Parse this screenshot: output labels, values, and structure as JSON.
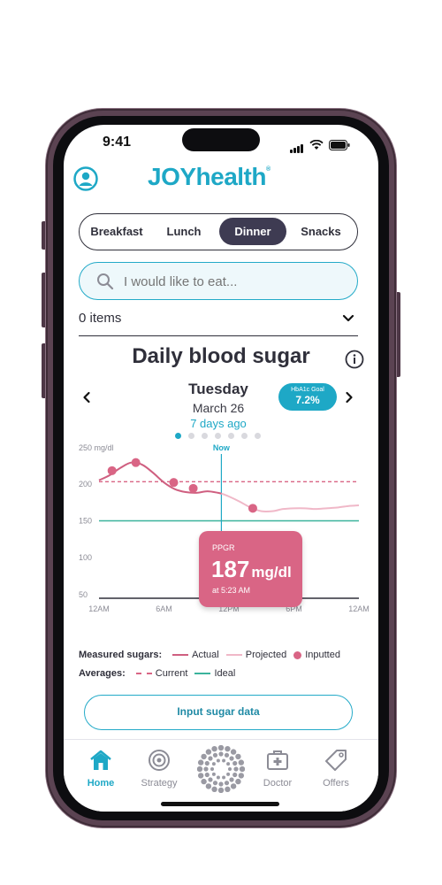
{
  "status_bar": {
    "time": "9:41"
  },
  "header": {
    "logo_text": "JOYhealth",
    "logo_mark": "®",
    "profile_icon": "user-circle-icon"
  },
  "meal_tabs": {
    "items": [
      "Breakfast",
      "Lunch",
      "Dinner",
      "Snacks"
    ],
    "selected": "Dinner"
  },
  "search": {
    "placeholder": "I would like to eat..."
  },
  "items": {
    "count_label": "0 items"
  },
  "chart_section": {
    "title": "Daily blood sugar",
    "day": "Tuesday",
    "date": "March 26",
    "relative": "7 days ago",
    "hba1c_label": "HbA1c Goal",
    "hba1c_value": "7.2%",
    "page_dots": 7,
    "active_dot": 0
  },
  "chart_data": {
    "type": "line",
    "ylabel": "",
    "y_unit_label": "250 mg/dl",
    "y_ticks": [
      "200",
      "150",
      "100",
      "50"
    ],
    "ylim": [
      45,
      255
    ],
    "x_ticks": [
      "12AM",
      "6AM",
      "12PM",
      "6PM",
      "12AM"
    ],
    "xlim": [
      0,
      24
    ],
    "now_label": "Now",
    "now_x": 11.3,
    "series": [
      {
        "name": "Actual",
        "x": [
          0,
          1,
          2,
          3,
          4,
          5,
          6,
          7,
          8,
          9,
          10,
          11,
          11.3
        ],
        "y": [
          205,
          212,
          222,
          229,
          226,
          215,
          202,
          193,
          189,
          188,
          190,
          188,
          187
        ]
      },
      {
        "name": "Projected",
        "x": [
          11.3,
          12,
          13,
          14,
          15,
          16,
          17,
          18,
          19,
          20,
          21,
          22,
          23,
          24
        ],
        "y": [
          187,
          183,
          176,
          168,
          163,
          163,
          166,
          167,
          167,
          166,
          167,
          168,
          170,
          171
        ]
      },
      {
        "name": "Inputted",
        "x": [
          1.2,
          3.4,
          6.9,
          8.7,
          14.2
        ],
        "y": [
          218,
          229,
          202,
          194,
          167
        ]
      }
    ],
    "averages": {
      "current": 203,
      "ideal": 150
    },
    "legend": {
      "measured_label": "Measured sugars:",
      "actual": "Actual",
      "projected": "Projected",
      "inputted": "Inputted",
      "averages_label": "Averages:",
      "current": "Current",
      "ideal": "Ideal"
    },
    "tooltip": {
      "label": "PPGR",
      "value": "187",
      "unit": "mg/dl",
      "time": "at 5:23 AM"
    }
  },
  "input_button": {
    "label": "Input sugar data"
  },
  "nav": {
    "items": [
      {
        "label": "Home",
        "icon": "home-icon"
      },
      {
        "label": "Strategy",
        "icon": "target-icon"
      },
      {
        "label": "",
        "icon": "joy-dots-icon"
      },
      {
        "label": "Doctor",
        "icon": "medical-kit-icon"
      },
      {
        "label": "Offers",
        "icon": "tag-icon"
      }
    ],
    "active": "Home"
  },
  "colors": {
    "accent": "#1ea8c6",
    "actual": "#cf5f80",
    "projected": "#f0b8c8",
    "inputted": "#d96585",
    "current": "#d96585",
    "ideal": "#3bb39c",
    "dark": "#3e3b52"
  }
}
